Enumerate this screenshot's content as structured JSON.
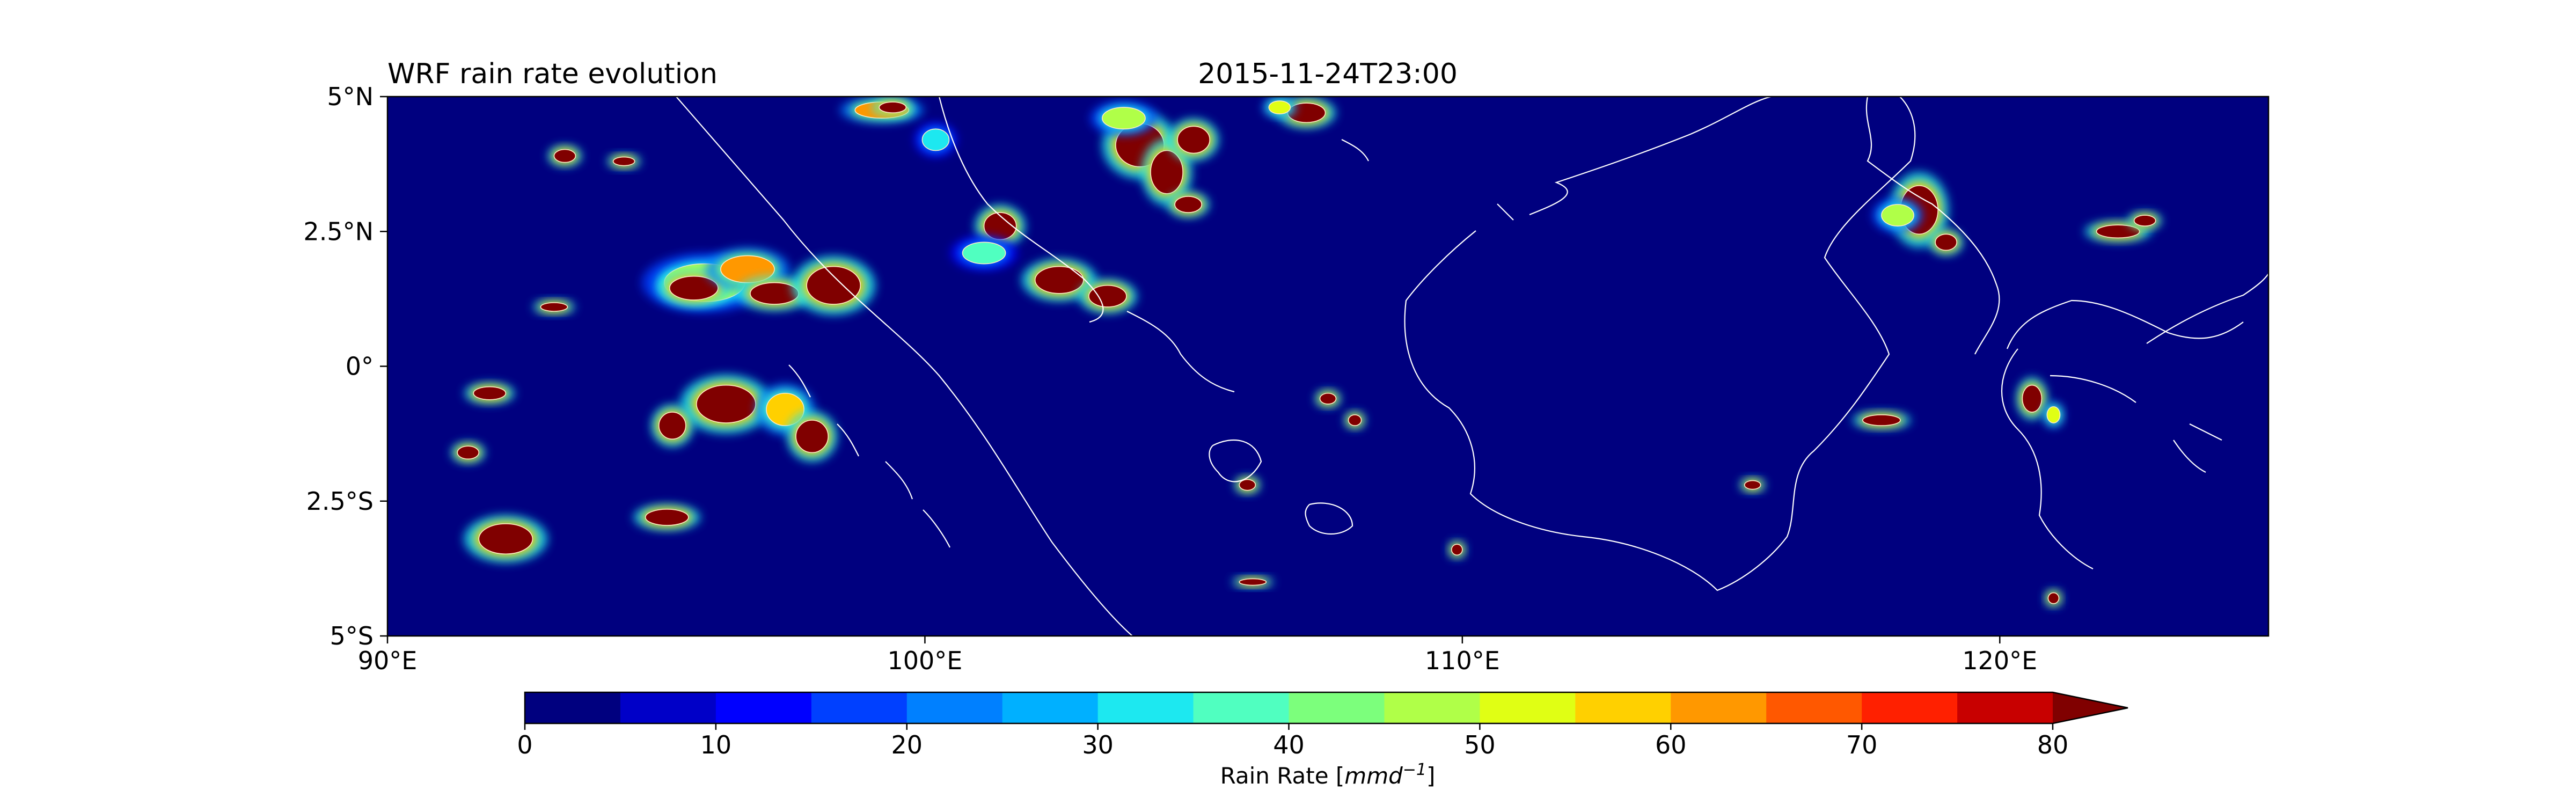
{
  "chart_data": {
    "type": "heatmap",
    "title_left": "WRF rain rate evolution",
    "title_center": "2015-11-24T23:00",
    "x_ticks": [
      "90°E",
      "100°E",
      "110°E",
      "120°E"
    ],
    "x_tick_values": [
      90,
      100,
      110,
      120
    ],
    "y_ticks": [
      "5°N",
      "2.5°N",
      "0°",
      "2.5°S",
      "5°S"
    ],
    "y_tick_values": [
      5,
      2.5,
      0,
      -2.5,
      -5
    ],
    "lon_range": [
      90,
      125
    ],
    "lat_range": [
      -5,
      5
    ],
    "background_value": 0,
    "background_color": "#00007f",
    "coastline_color": "#ffffff",
    "rain_cells": [
      {
        "lon": 95.9,
        "lat": 1.55,
        "rx": 0.75,
        "ry": 0.35,
        "value": 45
      },
      {
        "lon": 95.7,
        "lat": 1.45,
        "rx": 0.45,
        "ry": 0.22,
        "value": 82
      },
      {
        "lon": 96.7,
        "lat": 1.8,
        "rx": 0.5,
        "ry": 0.25,
        "value": 60
      },
      {
        "lon": 97.2,
        "lat": 1.35,
        "rx": 0.45,
        "ry": 0.2,
        "value": 82
      },
      {
        "lon": 98.3,
        "lat": 1.5,
        "rx": 0.5,
        "ry": 0.35,
        "value": 82
      },
      {
        "lon": 96.3,
        "lat": -0.7,
        "rx": 0.55,
        "ry": 0.35,
        "value": 82
      },
      {
        "lon": 97.4,
        "lat": -0.8,
        "rx": 0.35,
        "ry": 0.3,
        "value": 55
      },
      {
        "lon": 97.9,
        "lat": -1.3,
        "rx": 0.3,
        "ry": 0.3,
        "value": 82
      },
      {
        "lon": 95.3,
        "lat": -1.1,
        "rx": 0.25,
        "ry": 0.25,
        "value": 82
      },
      {
        "lon": 92.2,
        "lat": -3.2,
        "rx": 0.5,
        "ry": 0.28,
        "value": 82
      },
      {
        "lon": 91.9,
        "lat": -0.5,
        "rx": 0.3,
        "ry": 0.12,
        "value": 82
      },
      {
        "lon": 91.5,
        "lat": -1.6,
        "rx": 0.2,
        "ry": 0.12,
        "value": 82
      },
      {
        "lon": 95.2,
        "lat": -2.8,
        "rx": 0.4,
        "ry": 0.15,
        "value": 82
      },
      {
        "lon": 101.4,
        "lat": 2.6,
        "rx": 0.3,
        "ry": 0.25,
        "value": 82
      },
      {
        "lon": 101.1,
        "lat": 2.1,
        "rx": 0.4,
        "ry": 0.2,
        "value": 35
      },
      {
        "lon": 102.5,
        "lat": 1.6,
        "rx": 0.45,
        "ry": 0.25,
        "value": 82
      },
      {
        "lon": 103.4,
        "lat": 1.3,
        "rx": 0.35,
        "ry": 0.2,
        "value": 82
      },
      {
        "lon": 104.0,
        "lat": 4.1,
        "rx": 0.45,
        "ry": 0.4,
        "value": 82
      },
      {
        "lon": 104.5,
        "lat": 3.6,
        "rx": 0.3,
        "ry": 0.4,
        "value": 82
      },
      {
        "lon": 103.7,
        "lat": 4.6,
        "rx": 0.4,
        "ry": 0.2,
        "value": 45
      },
      {
        "lon": 105.0,
        "lat": 4.2,
        "rx": 0.3,
        "ry": 0.25,
        "value": 82
      },
      {
        "lon": 99.2,
        "lat": 4.75,
        "rx": 0.5,
        "ry": 0.15,
        "value": 60
      },
      {
        "lon": 99.4,
        "lat": 4.8,
        "rx": 0.25,
        "ry": 0.1,
        "value": 82
      },
      {
        "lon": 107.1,
        "lat": 4.7,
        "rx": 0.35,
        "ry": 0.18,
        "value": 82
      },
      {
        "lon": 106.6,
        "lat": 4.8,
        "rx": 0.2,
        "ry": 0.12,
        "value": 50
      },
      {
        "lon": 104.9,
        "lat": 3.0,
        "rx": 0.25,
        "ry": 0.15,
        "value": 82
      },
      {
        "lon": 118.5,
        "lat": 2.9,
        "rx": 0.35,
        "ry": 0.45,
        "value": 82
      },
      {
        "lon": 118.1,
        "lat": 2.8,
        "rx": 0.3,
        "ry": 0.2,
        "value": 45
      },
      {
        "lon": 119.0,
        "lat": 2.3,
        "rx": 0.2,
        "ry": 0.15,
        "value": 82
      },
      {
        "lon": 122.2,
        "lat": 2.5,
        "rx": 0.4,
        "ry": 0.12,
        "value": 82
      },
      {
        "lon": 122.7,
        "lat": 2.7,
        "rx": 0.2,
        "ry": 0.1,
        "value": 82
      },
      {
        "lon": 120.6,
        "lat": -0.6,
        "rx": 0.18,
        "ry": 0.25,
        "value": 82
      },
      {
        "lon": 121.0,
        "lat": -0.9,
        "rx": 0.12,
        "ry": 0.15,
        "value": 50
      },
      {
        "lon": 117.8,
        "lat": -1.0,
        "rx": 0.35,
        "ry": 0.1,
        "value": 82
      },
      {
        "lon": 93.3,
        "lat": 3.9,
        "rx": 0.2,
        "ry": 0.12,
        "value": 82
      },
      {
        "lon": 94.4,
        "lat": 3.8,
        "rx": 0.2,
        "ry": 0.08,
        "value": 82
      },
      {
        "lon": 93.1,
        "lat": 1.1,
        "rx": 0.25,
        "ry": 0.08,
        "value": 82
      },
      {
        "lon": 109.9,
        "lat": -3.4,
        "rx": 0.1,
        "ry": 0.1,
        "value": 82
      },
      {
        "lon": 106.1,
        "lat": -4.0,
        "rx": 0.25,
        "ry": 0.06,
        "value": 82
      },
      {
        "lon": 121.0,
        "lat": -4.3,
        "rx": 0.1,
        "ry": 0.1,
        "value": 82
      },
      {
        "lon": 107.5,
        "lat": -0.6,
        "rx": 0.15,
        "ry": 0.1,
        "value": 82
      },
      {
        "lon": 108.0,
        "lat": -1.0,
        "rx": 0.12,
        "ry": 0.1,
        "value": 82
      },
      {
        "lon": 106.0,
        "lat": -2.2,
        "rx": 0.15,
        "ry": 0.1,
        "value": 82
      },
      {
        "lon": 115.4,
        "lat": -2.2,
        "rx": 0.15,
        "ry": 0.08,
        "value": 82
      },
      {
        "lon": 100.2,
        "lat": 4.2,
        "rx": 0.25,
        "ry": 0.2,
        "value": 30
      }
    ],
    "colorbar": {
      "label": "Rain Rate [mmd⁻¹]",
      "label_text": "Rain Rate [",
      "label_unit": "mmd",
      "label_exp": "−1",
      "label_close": "]",
      "ticks": [
        "0",
        "10",
        "20",
        "30",
        "40",
        "50",
        "60",
        "70",
        "80"
      ],
      "tick_values": [
        0,
        10,
        20,
        30,
        40,
        50,
        60,
        70,
        80
      ],
      "levels": [
        0,
        5,
        10,
        15,
        20,
        25,
        30,
        35,
        40,
        45,
        50,
        55,
        60,
        65,
        70,
        75,
        80
      ],
      "colors": [
        "#00007f",
        "#0000c8",
        "#0000ff",
        "#0040ff",
        "#0080ff",
        "#00b0ff",
        "#1de8f0",
        "#50ffc0",
        "#7cff7c",
        "#b0ff48",
        "#e0ff14",
        "#ffd000",
        "#ff9800",
        "#ff5800",
        "#ff2000",
        "#c80000"
      ],
      "extend_color": "#800000",
      "extend": "max"
    }
  }
}
